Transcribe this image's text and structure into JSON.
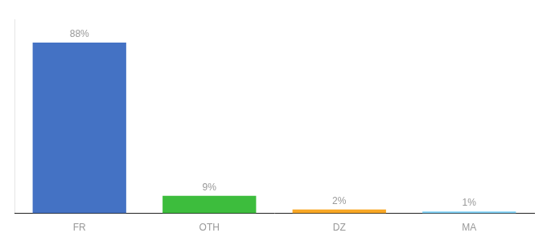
{
  "chart_data": {
    "type": "bar",
    "categories": [
      "FR",
      "OTH",
      "DZ",
      "MA"
    ],
    "values": [
      88,
      9,
      2,
      1
    ],
    "value_labels": [
      "88%",
      "9%",
      "2%",
      "1%"
    ],
    "colors": [
      "#4472C4",
      "#3DBD3D",
      "#F9A825",
      "#81D4FA"
    ],
    "ylim": [
      0,
      100
    ],
    "yticks": [],
    "grid": false,
    "data_labels": true,
    "tick_labels": "x"
  }
}
